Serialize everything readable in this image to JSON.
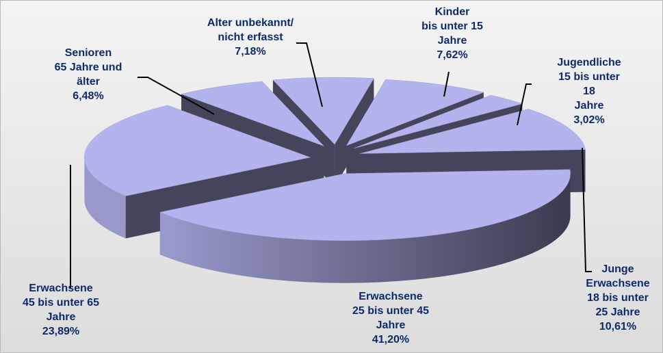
{
  "chart_data": {
    "type": "pie3d",
    "categories": [
      "Kinder\nbis unter 15\nJahre",
      "Jugendliche\n15 bis unter 18\nJahre",
      "Junge\nErwachsene\n18 bis unter\n25 Jahre",
      "Erwachsene\n25 bis unter 45\nJahre",
      "Erwachsene\n45 bis unter 65\nJahre",
      "Senioren\n65 Jahre und\nälter",
      "Alter unbekannt/\nnicht erfasst"
    ],
    "values": [
      7.62,
      3.02,
      10.61,
      41.2,
      23.89,
      6.48,
      7.18
    ],
    "value_labels": [
      "7,62%",
      "3,02%",
      "10,61%",
      "41,20%",
      "23,89%",
      "6,48%",
      "7,18%"
    ],
    "color": "#b3b3ee"
  }
}
